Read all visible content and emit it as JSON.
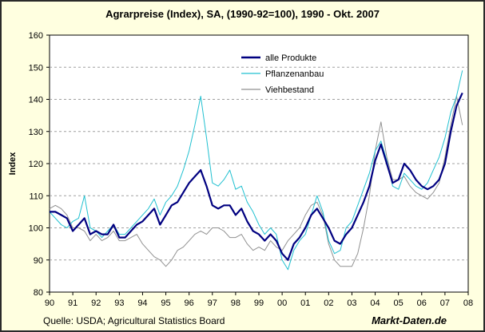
{
  "chart_data": {
    "type": "line",
    "title": "Agrarpreise (Index), SA, (1990-92=100), 1990 - Okt. 2007",
    "xlabel": "",
    "ylabel": "Index",
    "ylim": [
      80,
      160
    ],
    "yticks": [
      80,
      90,
      100,
      110,
      120,
      130,
      140,
      150,
      160
    ],
    "xlim": [
      1990,
      2008
    ],
    "xtick_labels": [
      "90",
      "91",
      "92",
      "93",
      "94",
      "95",
      "96",
      "97",
      "98",
      "99",
      "00",
      "01",
      "02",
      "03",
      "04",
      "05",
      "06",
      "07",
      "08"
    ],
    "grid": "horizontal dashed",
    "legend_position": "upper-center",
    "series": [
      {
        "name": "alle Produkte",
        "color": "#000080",
        "x": [
          1990.0,
          1990.25,
          1990.5,
          1990.75,
          1991.0,
          1991.25,
          1991.5,
          1991.75,
          1992.0,
          1992.25,
          1992.5,
          1992.75,
          1993.0,
          1993.25,
          1993.5,
          1993.75,
          1994.0,
          1994.25,
          1994.5,
          1994.75,
          1995.0,
          1995.25,
          1995.5,
          1995.75,
          1996.0,
          1996.25,
          1996.5,
          1996.75,
          1997.0,
          1997.25,
          1997.5,
          1997.75,
          1998.0,
          1998.25,
          1998.5,
          1998.75,
          1999.0,
          1999.25,
          1999.5,
          1999.75,
          2000.0,
          2000.25,
          2000.5,
          2000.75,
          2001.0,
          2001.25,
          2001.5,
          2001.75,
          2002.0,
          2002.25,
          2002.5,
          2002.75,
          2003.0,
          2003.25,
          2003.5,
          2003.75,
          2004.0,
          2004.25,
          2004.5,
          2004.75,
          2005.0,
          2005.25,
          2005.5,
          2005.75,
          2006.0,
          2006.25,
          2006.5,
          2006.75,
          2007.0,
          2007.25,
          2007.5,
          2007.75
        ],
        "values": [
          105,
          105,
          104,
          103,
          99,
          101,
          103,
          98,
          99,
          98,
          98,
          101,
          97,
          97,
          99,
          101,
          102,
          104,
          106,
          101,
          104,
          107,
          108,
          111,
          114,
          116,
          118,
          113,
          107,
          106,
          107,
          107,
          104,
          106,
          102,
          99,
          98,
          96,
          98,
          96,
          92,
          90,
          95,
          97,
          100,
          104,
          106,
          103,
          100,
          96,
          95,
          98,
          100,
          104,
          108,
          113,
          121,
          126,
          120,
          114,
          115,
          120,
          118,
          115,
          113,
          112,
          113,
          115,
          120,
          130,
          138,
          142
        ]
      },
      {
        "name": "Pflanzenanbau",
        "color": "#20c0d0",
        "x": [
          1990.0,
          1990.25,
          1990.5,
          1990.75,
          1991.0,
          1991.25,
          1991.5,
          1991.75,
          1992.0,
          1992.25,
          1992.5,
          1992.75,
          1993.0,
          1993.25,
          1993.5,
          1993.75,
          1994.0,
          1994.25,
          1994.5,
          1994.75,
          1995.0,
          1995.25,
          1995.5,
          1995.75,
          1996.0,
          1996.25,
          1996.5,
          1996.75,
          1997.0,
          1997.25,
          1997.5,
          1997.75,
          1998.0,
          1998.25,
          1998.5,
          1998.75,
          1999.0,
          1999.25,
          1999.5,
          1999.75,
          2000.0,
          2000.25,
          2000.5,
          2000.75,
          2001.0,
          2001.25,
          2001.5,
          2001.75,
          2002.0,
          2002.25,
          2002.5,
          2002.75,
          2003.0,
          2003.25,
          2003.5,
          2003.75,
          2004.0,
          2004.25,
          2004.5,
          2004.75,
          2005.0,
          2005.25,
          2005.5,
          2005.75,
          2006.0,
          2006.25,
          2006.5,
          2006.75,
          2007.0,
          2007.25,
          2007.5,
          2007.75
        ],
        "values": [
          105,
          103,
          101,
          100,
          102,
          103,
          110,
          100,
          99,
          97,
          99,
          101,
          98,
          98,
          100,
          102,
          104,
          106,
          109,
          104,
          108,
          110,
          113,
          118,
          124,
          132,
          141,
          128,
          114,
          113,
          115,
          118,
          112,
          113,
          108,
          105,
          101,
          98,
          100,
          98,
          90,
          87,
          93,
          96,
          98,
          104,
          110,
          105,
          96,
          92,
          93,
          100,
          102,
          107,
          112,
          117,
          124,
          127,
          121,
          113,
          112,
          117,
          115,
          113,
          112,
          114,
          118,
          122,
          128,
          136,
          141,
          149
        ]
      },
      {
        "name": "Viehbestand",
        "color": "#909090",
        "x": [
          1990.0,
          1990.25,
          1990.5,
          1990.75,
          1991.0,
          1991.25,
          1991.5,
          1991.75,
          1992.0,
          1992.25,
          1992.5,
          1992.75,
          1993.0,
          1993.25,
          1993.5,
          1993.75,
          1994.0,
          1994.25,
          1994.5,
          1994.75,
          1995.0,
          1995.25,
          1995.5,
          1995.75,
          1996.0,
          1996.25,
          1996.5,
          1996.75,
          1997.0,
          1997.25,
          1997.5,
          1997.75,
          1998.0,
          1998.25,
          1998.5,
          1998.75,
          1999.0,
          1999.25,
          1999.5,
          1999.75,
          2000.0,
          2000.25,
          2000.5,
          2000.75,
          2001.0,
          2001.25,
          2001.5,
          2001.75,
          2002.0,
          2002.25,
          2002.5,
          2002.75,
          2003.0,
          2003.25,
          2003.5,
          2003.75,
          2004.0,
          2004.25,
          2004.5,
          2004.75,
          2005.0,
          2005.25,
          2005.5,
          2005.75,
          2006.0,
          2006.25,
          2006.5,
          2006.75,
          2007.0,
          2007.25,
          2007.5,
          2007.75
        ],
        "values": [
          106,
          107,
          106,
          104,
          100,
          100,
          99,
          96,
          98,
          96,
          97,
          99,
          96,
          96,
          97,
          98,
          95,
          93,
          91,
          90,
          88,
          90,
          93,
          94,
          96,
          98,
          99,
          98,
          100,
          100,
          99,
          97,
          97,
          98,
          95,
          93,
          94,
          93,
          96,
          94,
          93,
          96,
          98,
          100,
          104,
          107,
          108,
          104,
          95,
          90,
          88,
          88,
          88,
          92,
          100,
          110,
          124,
          133,
          122,
          115,
          115,
          116,
          113,
          111,
          110,
          109,
          111,
          114,
          122,
          132,
          141,
          132
        ]
      }
    ],
    "source": "Quelle: USDA; Agricultural Statistics Board",
    "brand": "Markt-Daten.de"
  }
}
